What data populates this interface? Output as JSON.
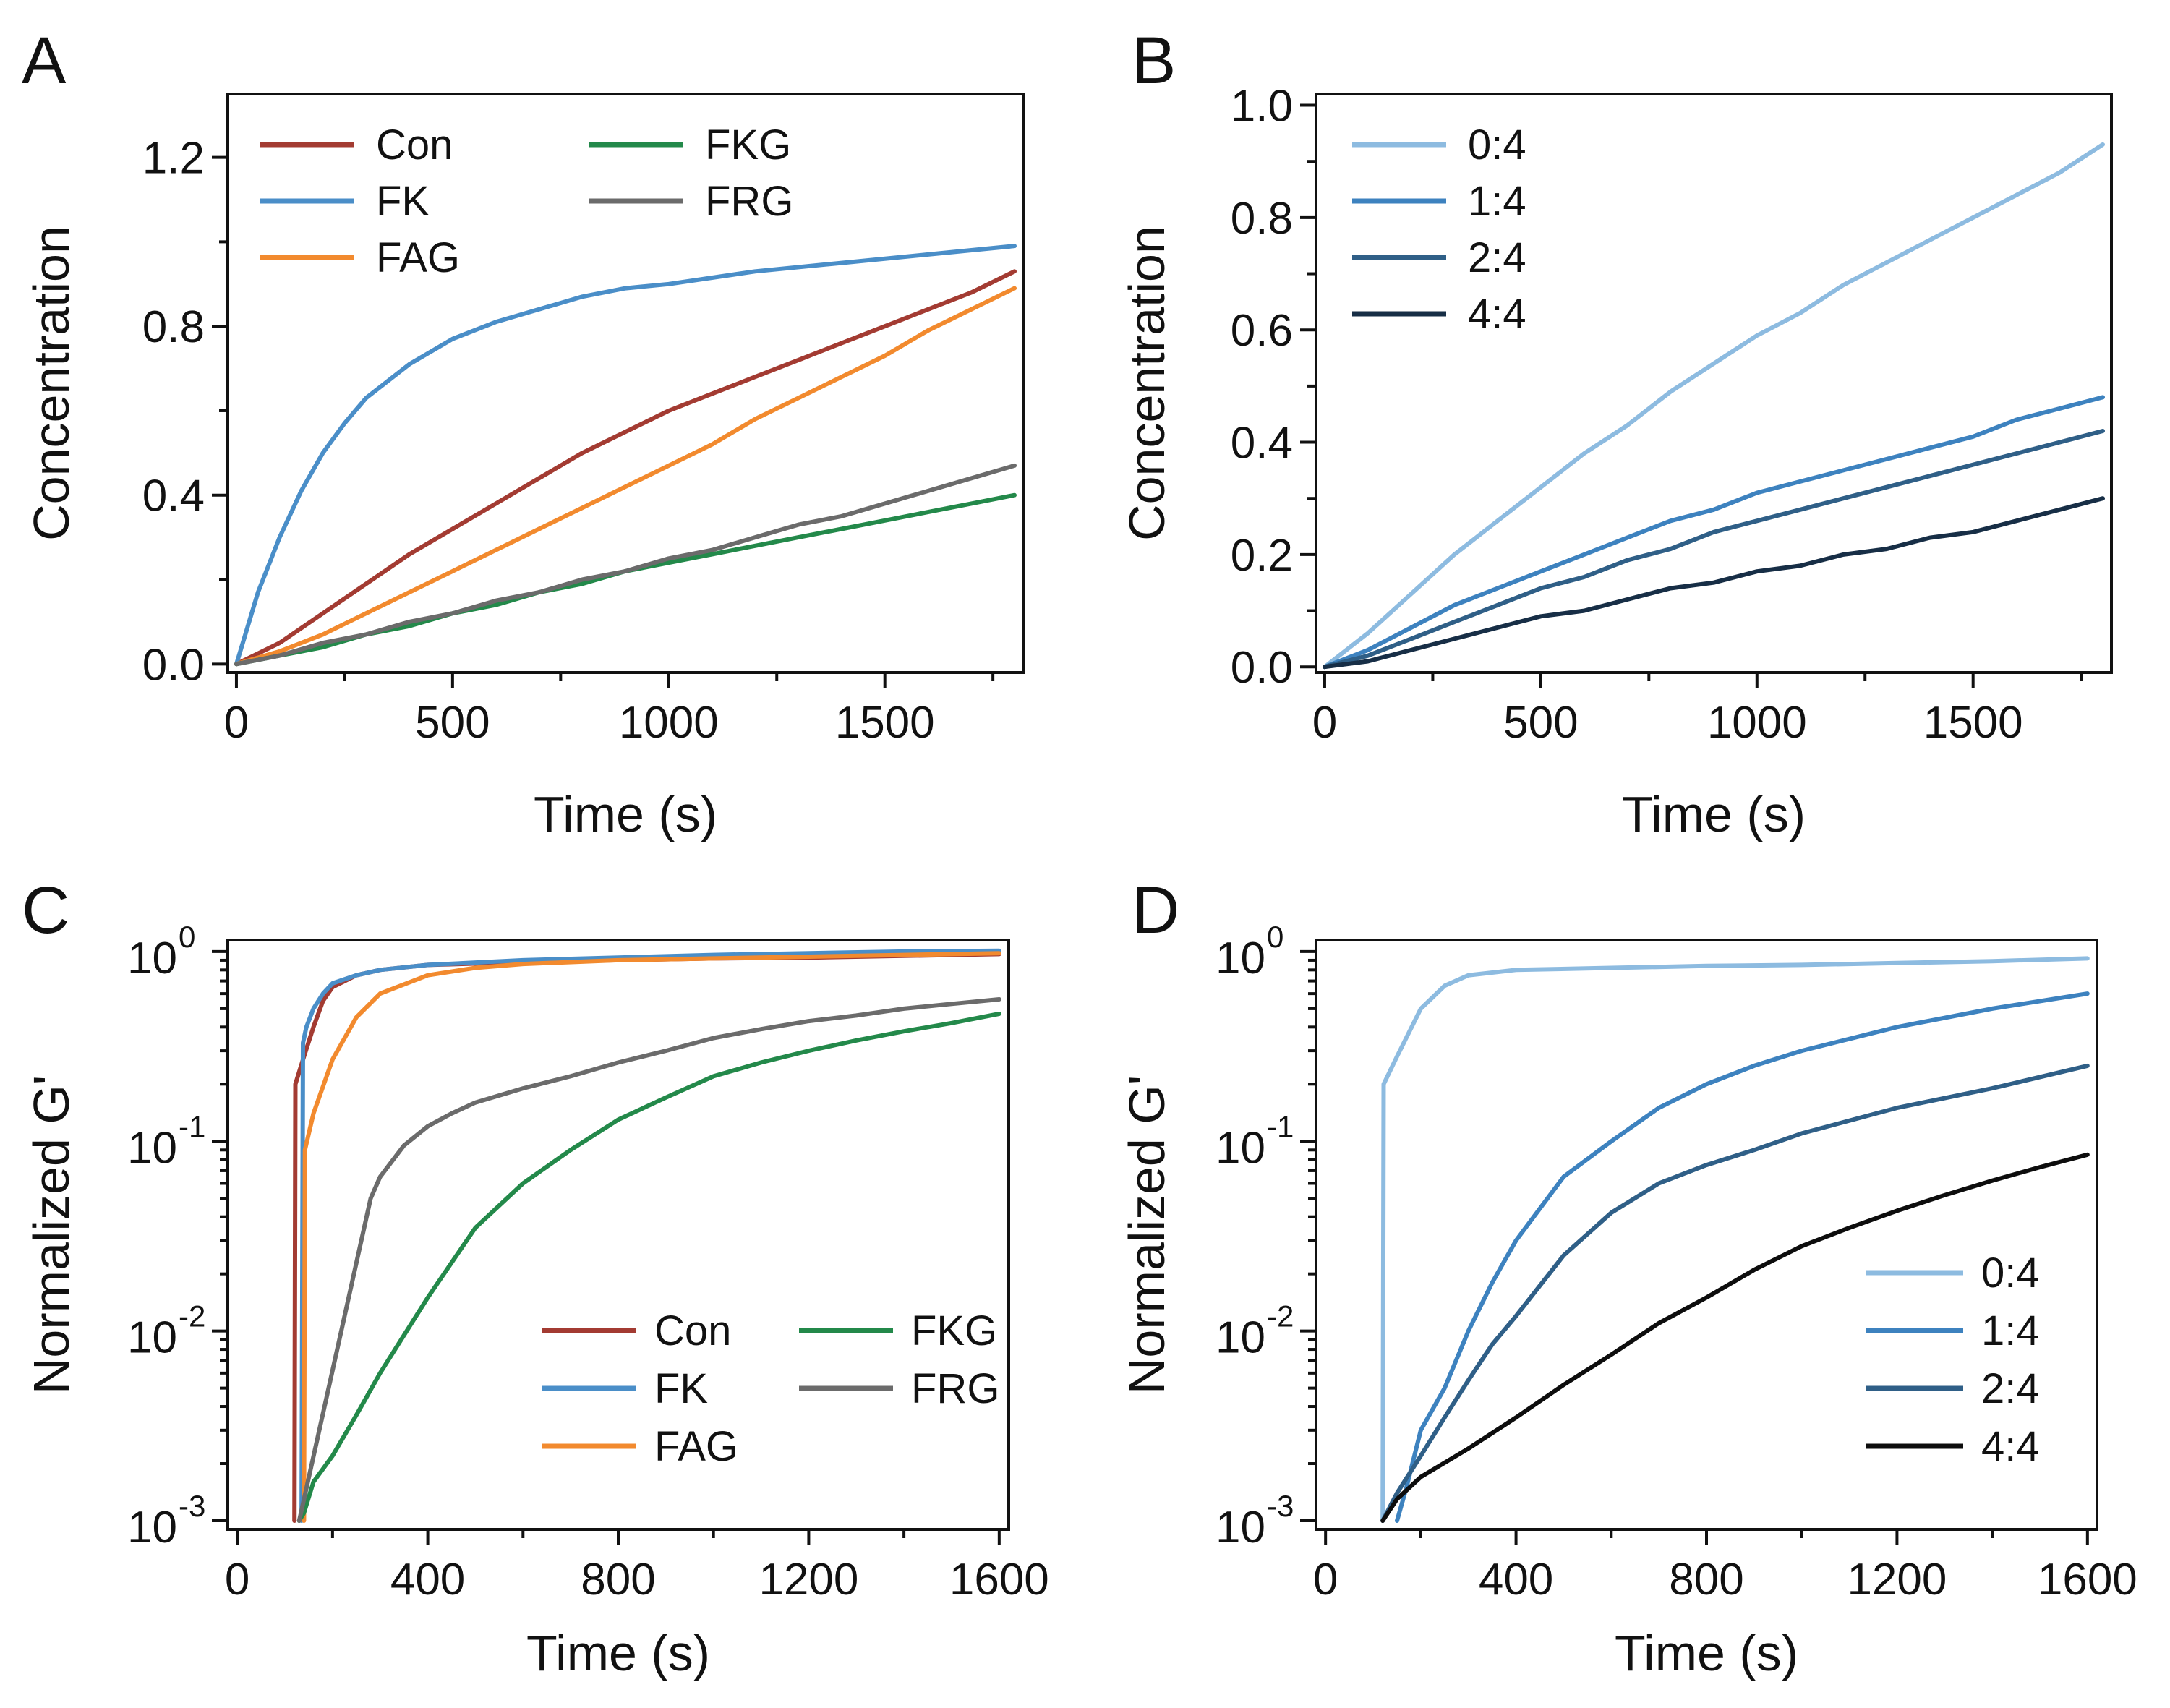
{
  "chart_data": [
    {
      "panel": "A",
      "type": "line",
      "xlabel": "Time (s)",
      "ylabel": "Concentration",
      "xlim": [
        -20,
        1820
      ],
      "ylim": [
        -0.02,
        1.35
      ],
      "yscale": "linear",
      "xticks": [
        0,
        500,
        1000,
        1500
      ],
      "xtick_labels": [
        "0",
        "500",
        "1000",
        "1500"
      ],
      "yticks": [
        0.0,
        0.4,
        0.8,
        1.2
      ],
      "ytick_labels": [
        "0.0",
        "0.4",
        "0.8",
        "1.2"
      ],
      "legend_position": "top-left",
      "series": [
        {
          "name": "Con",
          "color": "#a33b32",
          "x": [
            0,
            100,
            200,
            300,
            400,
            500,
            600,
            700,
            800,
            900,
            1000,
            1100,
            1200,
            1300,
            1400,
            1500,
            1600,
            1700,
            1800
          ],
          "values": [
            0,
            0.05,
            0.12,
            0.19,
            0.26,
            0.32,
            0.38,
            0.44,
            0.5,
            0.55,
            0.6,
            0.64,
            0.68,
            0.72,
            0.76,
            0.8,
            0.84,
            0.88,
            0.93
          ]
        },
        {
          "name": "FK",
          "color": "#4a8ec8",
          "x": [
            0,
            50,
            100,
            150,
            200,
            250,
            300,
            400,
            500,
            600,
            700,
            800,
            900,
            1000,
            1200,
            1400,
            1600,
            1800
          ],
          "values": [
            0,
            0.17,
            0.3,
            0.41,
            0.5,
            0.57,
            0.63,
            0.71,
            0.77,
            0.81,
            0.84,
            0.87,
            0.89,
            0.9,
            0.93,
            0.95,
            0.97,
            0.99
          ]
        },
        {
          "name": "FAG",
          "color": "#f28a2e",
          "x": [
            0,
            100,
            200,
            300,
            400,
            500,
            600,
            700,
            800,
            900,
            1000,
            1100,
            1200,
            1300,
            1400,
            1500,
            1600,
            1700,
            1800
          ],
          "values": [
            0,
            0.03,
            0.07,
            0.12,
            0.17,
            0.22,
            0.27,
            0.32,
            0.37,
            0.42,
            0.47,
            0.52,
            0.58,
            0.63,
            0.68,
            0.73,
            0.79,
            0.84,
            0.89
          ]
        },
        {
          "name": "FKG",
          "color": "#23894a",
          "x": [
            0,
            100,
            200,
            300,
            400,
            500,
            600,
            700,
            800,
            900,
            1000,
            1100,
            1200,
            1300,
            1400,
            1500,
            1600,
            1700,
            1800
          ],
          "values": [
            0,
            0.02,
            0.04,
            0.07,
            0.09,
            0.12,
            0.14,
            0.17,
            0.19,
            0.22,
            0.24,
            0.26,
            0.28,
            0.3,
            0.32,
            0.34,
            0.36,
            0.38,
            0.4
          ]
        },
        {
          "name": "FRG",
          "color": "#6b6b6b",
          "x": [
            0,
            100,
            200,
            300,
            400,
            500,
            600,
            700,
            800,
            900,
            1000,
            1100,
            1200,
            1300,
            1400,
            1500,
            1600,
            1700,
            1800
          ],
          "values": [
            0,
            0.02,
            0.05,
            0.07,
            0.1,
            0.12,
            0.15,
            0.17,
            0.2,
            0.22,
            0.25,
            0.27,
            0.3,
            0.33,
            0.35,
            0.38,
            0.41,
            0.44,
            0.47
          ]
        }
      ]
    },
    {
      "panel": "B",
      "type": "line",
      "xlabel": "Time (s)",
      "ylabel": "Concentration",
      "xlim": [
        -20,
        1820
      ],
      "ylim": [
        -0.01,
        1.02
      ],
      "yscale": "linear",
      "xticks": [
        0,
        500,
        1000,
        1500
      ],
      "xtick_labels": [
        "0",
        "500",
        "1000",
        "1500"
      ],
      "yticks": [
        0.0,
        0.2,
        0.4,
        0.6,
        0.8,
        1.0
      ],
      "ytick_labels": [
        "0.0",
        "0.2",
        "0.4",
        "0.6",
        "0.8",
        "1.0"
      ],
      "legend_position": "top-left",
      "series": [
        {
          "name": "0:4",
          "color": "#8dbbe0",
          "x": [
            0,
            100,
            200,
            300,
            400,
            500,
            600,
            700,
            800,
            900,
            1000,
            1100,
            1200,
            1300,
            1400,
            1500,
            1600,
            1700,
            1800
          ],
          "values": [
            0,
            0.06,
            0.13,
            0.2,
            0.26,
            0.32,
            0.38,
            0.43,
            0.49,
            0.54,
            0.59,
            0.63,
            0.68,
            0.72,
            0.76,
            0.8,
            0.84,
            0.88,
            0.93
          ]
        },
        {
          "name": "1:4",
          "color": "#3d82bf",
          "x": [
            0,
            100,
            200,
            300,
            400,
            500,
            600,
            700,
            800,
            900,
            1000,
            1100,
            1200,
            1300,
            1400,
            1500,
            1600,
            1700,
            1800
          ],
          "values": [
            0,
            0.03,
            0.07,
            0.11,
            0.14,
            0.17,
            0.2,
            0.23,
            0.26,
            0.28,
            0.31,
            0.33,
            0.35,
            0.37,
            0.39,
            0.41,
            0.44,
            0.46,
            0.48
          ]
        },
        {
          "name": "2:4",
          "color": "#2f5f87",
          "x": [
            0,
            100,
            200,
            300,
            400,
            500,
            600,
            700,
            800,
            900,
            1000,
            1100,
            1200,
            1300,
            1400,
            1500,
            1600,
            1700,
            1800
          ],
          "values": [
            0,
            0.02,
            0.05,
            0.08,
            0.11,
            0.14,
            0.16,
            0.19,
            0.21,
            0.24,
            0.26,
            0.28,
            0.3,
            0.32,
            0.34,
            0.36,
            0.38,
            0.4,
            0.42
          ]
        },
        {
          "name": "4:4",
          "color": "#172e46",
          "x": [
            0,
            100,
            200,
            300,
            400,
            500,
            600,
            700,
            800,
            900,
            1000,
            1100,
            1200,
            1300,
            1400,
            1500,
            1600,
            1700,
            1800
          ],
          "values": [
            0,
            0.01,
            0.03,
            0.05,
            0.07,
            0.09,
            0.1,
            0.12,
            0.14,
            0.15,
            0.17,
            0.18,
            0.2,
            0.21,
            0.23,
            0.24,
            0.26,
            0.28,
            0.3
          ]
        }
      ]
    },
    {
      "panel": "C",
      "type": "line",
      "xlabel": "Time (s)",
      "ylabel": "Normalized G'",
      "xlim": [
        -20,
        1620
      ],
      "ylim": [
        0.0009,
        1.15
      ],
      "yscale": "log",
      "xticks": [
        0,
        400,
        800,
        1200,
        1600
      ],
      "xtick_labels": [
        "0",
        "400",
        "800",
        "1200",
        "1600"
      ],
      "yticks": [
        0.001,
        0.01,
        0.1,
        1
      ],
      "ytick_labels": [
        {
          "base": "10",
          "exp": "-3"
        },
        {
          "base": "10",
          "exp": "-2"
        },
        {
          "base": "10",
          "exp": "-1"
        },
        {
          "base": "10",
          "exp": "0"
        }
      ],
      "legend_position": "bottom-right",
      "series": [
        {
          "name": "Con",
          "color": "#a33b32",
          "x": [
            120,
            122,
            140,
            160,
            180,
            200,
            250,
            300,
            400,
            600,
            800,
            1000,
            1200,
            1400,
            1600
          ],
          "values": [
            0.001,
            0.2,
            0.28,
            0.4,
            0.55,
            0.65,
            0.75,
            0.8,
            0.85,
            0.88,
            0.9,
            0.92,
            0.93,
            0.95,
            0.97
          ]
        },
        {
          "name": "FK",
          "color": "#4a8ec8",
          "x": [
            135,
            138,
            145,
            160,
            180,
            200,
            250,
            300,
            400,
            600,
            800,
            1000,
            1200,
            1400,
            1600
          ],
          "values": [
            0.001,
            0.33,
            0.4,
            0.5,
            0.6,
            0.68,
            0.75,
            0.8,
            0.85,
            0.9,
            0.93,
            0.96,
            0.98,
            1.0,
            1.01
          ]
        },
        {
          "name": "FAG",
          "color": "#f28a2e",
          "x": [
            140,
            142,
            160,
            200,
            250,
            300,
            400,
            500,
            600,
            800,
            1000,
            1200,
            1400,
            1600
          ],
          "values": [
            0.001,
            0.09,
            0.14,
            0.27,
            0.45,
            0.6,
            0.75,
            0.82,
            0.86,
            0.9,
            0.92,
            0.94,
            0.96,
            0.98
          ]
        },
        {
          "name": "FKG",
          "color": "#23894a",
          "x": [
            130,
            140,
            160,
            200,
            250,
            300,
            350,
            400,
            500,
            600,
            700,
            800,
            900,
            1000,
            1100,
            1200,
            1300,
            1400,
            1500,
            1600
          ],
          "values": [
            0.001,
            0.0011,
            0.0016,
            0.0022,
            0.0036,
            0.006,
            0.0095,
            0.015,
            0.035,
            0.06,
            0.09,
            0.13,
            0.17,
            0.22,
            0.26,
            0.3,
            0.34,
            0.38,
            0.42,
            0.47
          ]
        },
        {
          "name": "FRG",
          "color": "#6b6b6b",
          "x": [
            130,
            280,
            300,
            350,
            400,
            450,
            500,
            600,
            700,
            800,
            900,
            1000,
            1100,
            1200,
            1300,
            1400,
            1500,
            1600
          ],
          "values": [
            0.001,
            0.05,
            0.065,
            0.095,
            0.12,
            0.14,
            0.16,
            0.19,
            0.22,
            0.26,
            0.3,
            0.35,
            0.39,
            0.43,
            0.46,
            0.5,
            0.53,
            0.56
          ]
        }
      ]
    },
    {
      "panel": "D",
      "type": "line",
      "xlabel": "Time (s)",
      "ylabel": "Normalized G'",
      "xlim": [
        -20,
        1620
      ],
      "ylim": [
        0.0009,
        1.15
      ],
      "yscale": "log",
      "xticks": [
        0,
        400,
        800,
        1200,
        1600
      ],
      "xtick_labels": [
        "0",
        "400",
        "800",
        "1200",
        "1600"
      ],
      "yticks": [
        0.001,
        0.01,
        0.1,
        1
      ],
      "ytick_labels": [
        {
          "base": "10",
          "exp": "-3"
        },
        {
          "base": "10",
          "exp": "-2"
        },
        {
          "base": "10",
          "exp": "-1"
        },
        {
          "base": "10",
          "exp": "0"
        }
      ],
      "legend_position": "bottom-right",
      "series": [
        {
          "name": "0:4",
          "color": "#8dbbe0",
          "x": [
            120,
            122,
            150,
            200,
            250,
            300,
            400,
            600,
            800,
            1000,
            1200,
            1400,
            1600
          ],
          "values": [
            0.001,
            0.2,
            0.28,
            0.5,
            0.66,
            0.75,
            0.8,
            0.82,
            0.84,
            0.85,
            0.87,
            0.89,
            0.92
          ]
        },
        {
          "name": "1:4",
          "color": "#3d82bf",
          "x": [
            150,
            170,
            200,
            250,
            300,
            350,
            400,
            500,
            600,
            700,
            800,
            900,
            1000,
            1200,
            1400,
            1600
          ],
          "values": [
            0.001,
            0.0015,
            0.003,
            0.005,
            0.01,
            0.018,
            0.03,
            0.065,
            0.1,
            0.15,
            0.2,
            0.25,
            0.3,
            0.4,
            0.5,
            0.6
          ]
        },
        {
          "name": "2:4",
          "color": "#2f5f87",
          "x": [
            120,
            150,
            200,
            250,
            300,
            350,
            400,
            500,
            600,
            700,
            800,
            900,
            1000,
            1200,
            1400,
            1600
          ],
          "values": [
            0.001,
            0.0014,
            0.0022,
            0.0035,
            0.0055,
            0.0085,
            0.012,
            0.025,
            0.042,
            0.06,
            0.075,
            0.09,
            0.11,
            0.15,
            0.19,
            0.25
          ]
        },
        {
          "name": "4:4",
          "color": "#0d0d0d",
          "x": [
            120,
            150,
            200,
            300,
            400,
            500,
            600,
            700,
            800,
            900,
            1000,
            1100,
            1200,
            1300,
            1400,
            1500,
            1600
          ],
          "values": [
            0.001,
            0.0013,
            0.0017,
            0.0024,
            0.0035,
            0.0052,
            0.0075,
            0.011,
            0.015,
            0.021,
            0.028,
            0.035,
            0.043,
            0.052,
            0.062,
            0.073,
            0.085
          ]
        }
      ]
    }
  ]
}
